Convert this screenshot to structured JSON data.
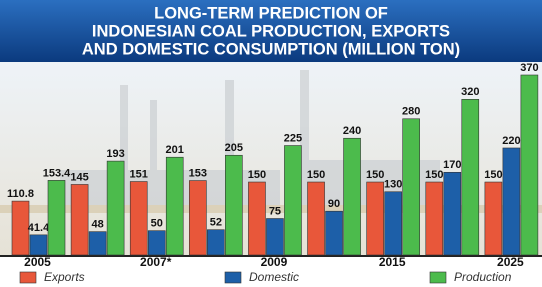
{
  "chart_data": {
    "type": "bar",
    "title": [
      "LONG-TERM PREDICTION OF",
      "INDONESIAN COAL PRODUCTION, EXPORTS",
      "AND DOMESTIC CONSUMPTION (MILLION TON)"
    ],
    "categories": [
      "2005",
      null,
      "2007*",
      null,
      "2009",
      null,
      "2015",
      null,
      "2025"
    ],
    "series": [
      {
        "name": "Exports",
        "color": "#e8573a",
        "values": [
          110.8,
          145,
          151,
          153,
          150,
          150,
          150,
          150,
          150
        ]
      },
      {
        "name": "Domestic",
        "color": "#1d5fa8",
        "values": [
          41.4,
          48,
          50,
          52,
          75,
          90,
          130,
          170,
          220
        ]
      },
      {
        "name": "Production",
        "color": "#4cbb4c",
        "values": [
          153.4,
          193,
          201,
          205,
          225,
          240,
          280,
          320,
          370
        ]
      }
    ]
  }
}
